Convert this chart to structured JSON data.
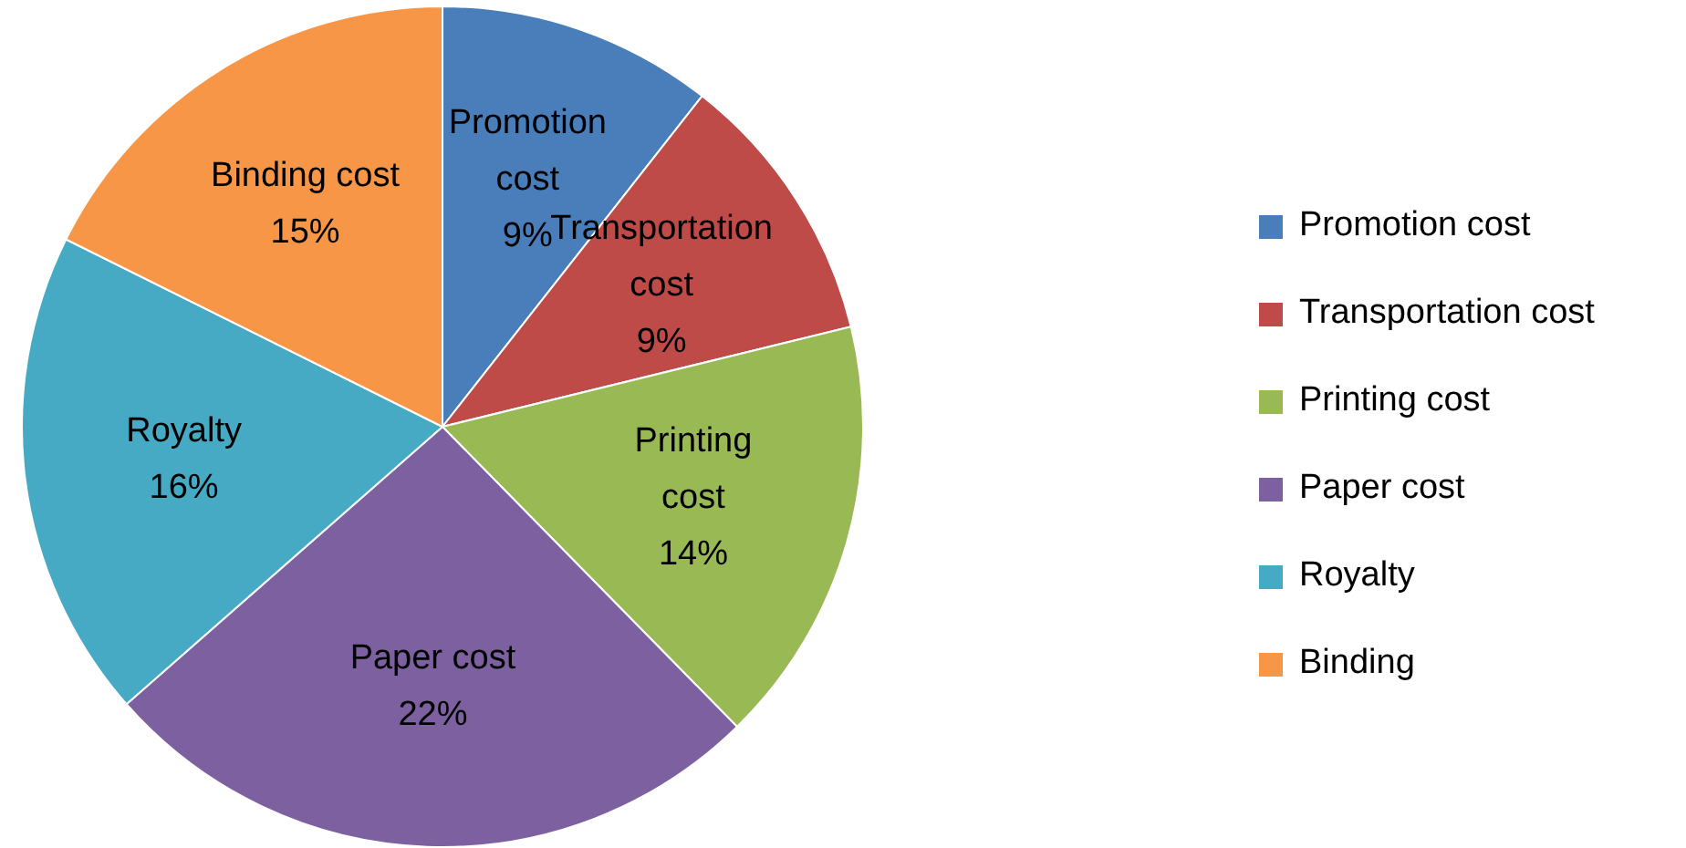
{
  "chart_data": {
    "type": "pie",
    "categories": [
      "Promotion cost",
      "Transportation cost",
      "Printing cost",
      "Paper cost",
      "Royalty",
      "Binding"
    ],
    "values": [
      9,
      9,
      14,
      22,
      16,
      15
    ],
    "colors": [
      "#4a7ebb",
      "#be4b48",
      "#98b954",
      "#7d60a0",
      "#46aac5",
      "#f79646"
    ],
    "value_labels": [
      "Promotion\ncost\n9%",
      "Transportation\ncost\n9%",
      "Printing\ncost\n14%",
      "Paper cost\n22%",
      "Royalty\n16%",
      "Binding cost\n15%"
    ],
    "legend": "right"
  }
}
